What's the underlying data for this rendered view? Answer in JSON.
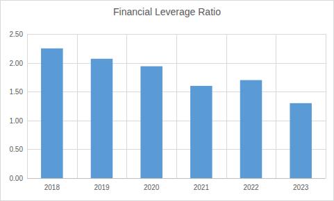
{
  "chart_data": {
    "type": "bar",
    "title": "Financial Leverage Ratio",
    "categories": [
      "2018",
      "2019",
      "2020",
      "2021",
      "2022",
      "2023"
    ],
    "values": [
      2.25,
      2.07,
      1.94,
      1.6,
      1.7,
      1.3
    ],
    "color": "#5b9bd5",
    "ylim": [
      0,
      2.5
    ],
    "yticks": [
      {
        "value": 0,
        "label": "0.00"
      },
      {
        "value": 0.5,
        "label": "0.50"
      },
      {
        "value": 1,
        "label": "1.00"
      },
      {
        "value": 1.5,
        "label": "1.50"
      },
      {
        "value": 2,
        "label": "2.00"
      },
      {
        "value": 2.5,
        "label": "2.50"
      }
    ],
    "grid": true
  }
}
